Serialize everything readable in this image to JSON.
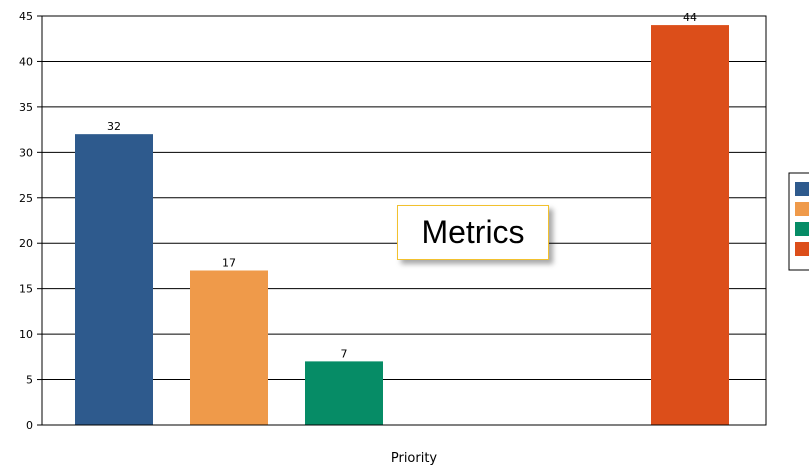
{
  "overlay": {
    "label": "Metrics"
  },
  "chart_data": {
    "type": "bar",
    "title": "",
    "xlabel": "Priority",
    "ylabel": "",
    "ylim": [
      0,
      45
    ],
    "y_ticks": [
      0,
      5,
      10,
      15,
      20,
      25,
      30,
      35,
      40,
      45
    ],
    "grid": true,
    "legend_position": "right",
    "series": [
      {
        "value": 32,
        "color": "#2e5a8d"
      },
      {
        "value": 17,
        "color": "#ef9a4a"
      },
      {
        "value": 7,
        "color": "#068c66"
      },
      {
        "value": 44,
        "color": "#dc4e1a"
      }
    ],
    "data_labels": [
      "32",
      "17",
      "7",
      "44"
    ]
  }
}
